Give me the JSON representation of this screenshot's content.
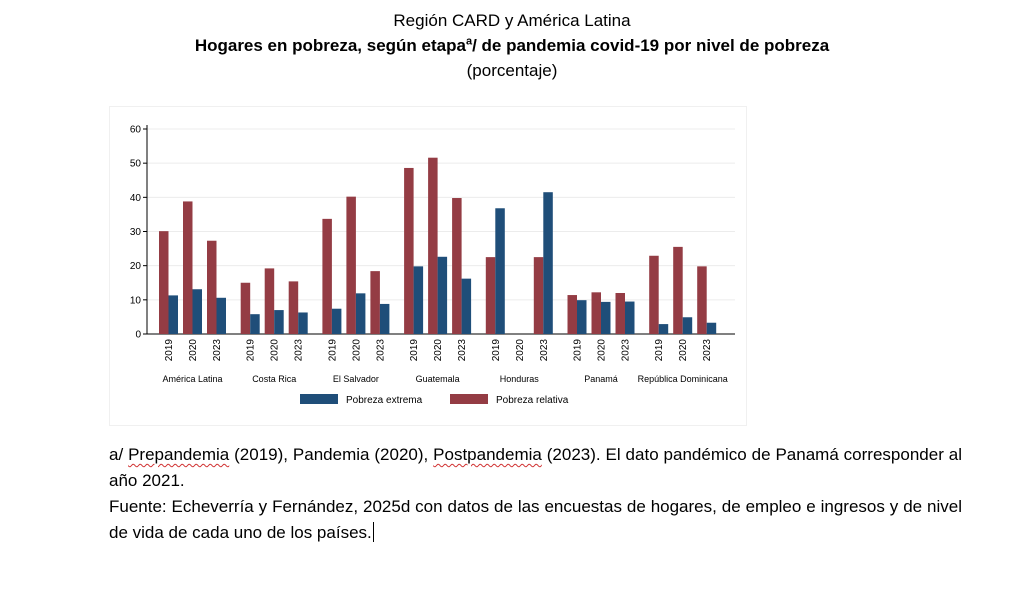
{
  "header": {
    "line1": "Región CARD y América Latina",
    "line2_pre": "Hogares en pobreza, según etapa",
    "line2_sup": "a",
    "line2_post": "/ de pandemia covid-19 por nivel de pobreza",
    "line3": "(porcentaje)"
  },
  "chart_data": {
    "type": "bar",
    "title": "",
    "xlabel": "",
    "ylabel": "",
    "ylim": [
      0,
      60
    ],
    "yticks": [
      0,
      10,
      20,
      30,
      40,
      50,
      60
    ],
    "grid": true,
    "legend_position": "bottom",
    "colors": {
      "Pobreza extrema": "#1f4e79",
      "Pobreza relativa": "#943c44"
    },
    "series_names": [
      "Pobreza extrema",
      "Pobreza relativa"
    ],
    "groups": [
      {
        "name": "América Latina",
        "years": [
          "2019",
          "2020",
          "2023"
        ],
        "extrema": [
          11.3,
          13.1,
          10.6
        ],
        "relativa": [
          30.1,
          38.8,
          27.3
        ]
      },
      {
        "name": "Costa Rica",
        "years": [
          "2019",
          "2020",
          "2023"
        ],
        "extrema": [
          5.8,
          7.0,
          6.3
        ],
        "relativa": [
          15.0,
          19.2,
          15.4
        ]
      },
      {
        "name": "El Salvador",
        "years": [
          "2019",
          "2020",
          "2023"
        ],
        "extrema": [
          7.4,
          11.9,
          8.8
        ],
        "relativa": [
          33.7,
          40.2,
          18.4
        ]
      },
      {
        "name": "Guatemala",
        "years": [
          "2019",
          "2020",
          "2023"
        ],
        "extrema": [
          19.8,
          22.6,
          16.2
        ],
        "relativa": [
          48.6,
          51.6,
          39.8
        ]
      },
      {
        "name": "Honduras",
        "years": [
          "2019",
          "2020",
          "2023"
        ],
        "extrema": [
          36.8,
          null,
          41.5
        ],
        "relativa": [
          22.5,
          null,
          22.5
        ]
      },
      {
        "name": "Panamá",
        "years": [
          "2019",
          "2020",
          "2023"
        ],
        "extrema": [
          9.9,
          9.4,
          9.5
        ],
        "relativa": [
          11.4,
          12.2,
          12.0
        ]
      },
      {
        "name": "República Dominicana",
        "years": [
          "2019",
          "2020",
          "2023"
        ],
        "extrema": [
          2.9,
          4.9,
          3.3
        ],
        "relativa": [
          22.9,
          25.5,
          19.8
        ]
      }
    ]
  },
  "notes": {
    "line1_a": "a/ ",
    "line1_w1": "Prepandemia",
    "line1_b": " (2019), Pandemia (2020), ",
    "line1_w2": "Postpandemia",
    "line1_c": " (2023). El dato pandémico de Panamá corresponder al año 2021.",
    "line2": "Fuente: Echeverría y Fernández, 2025d con datos de las encuestas de hogares, de empleo e ingresos y de nivel de vida de cada uno de los países."
  }
}
